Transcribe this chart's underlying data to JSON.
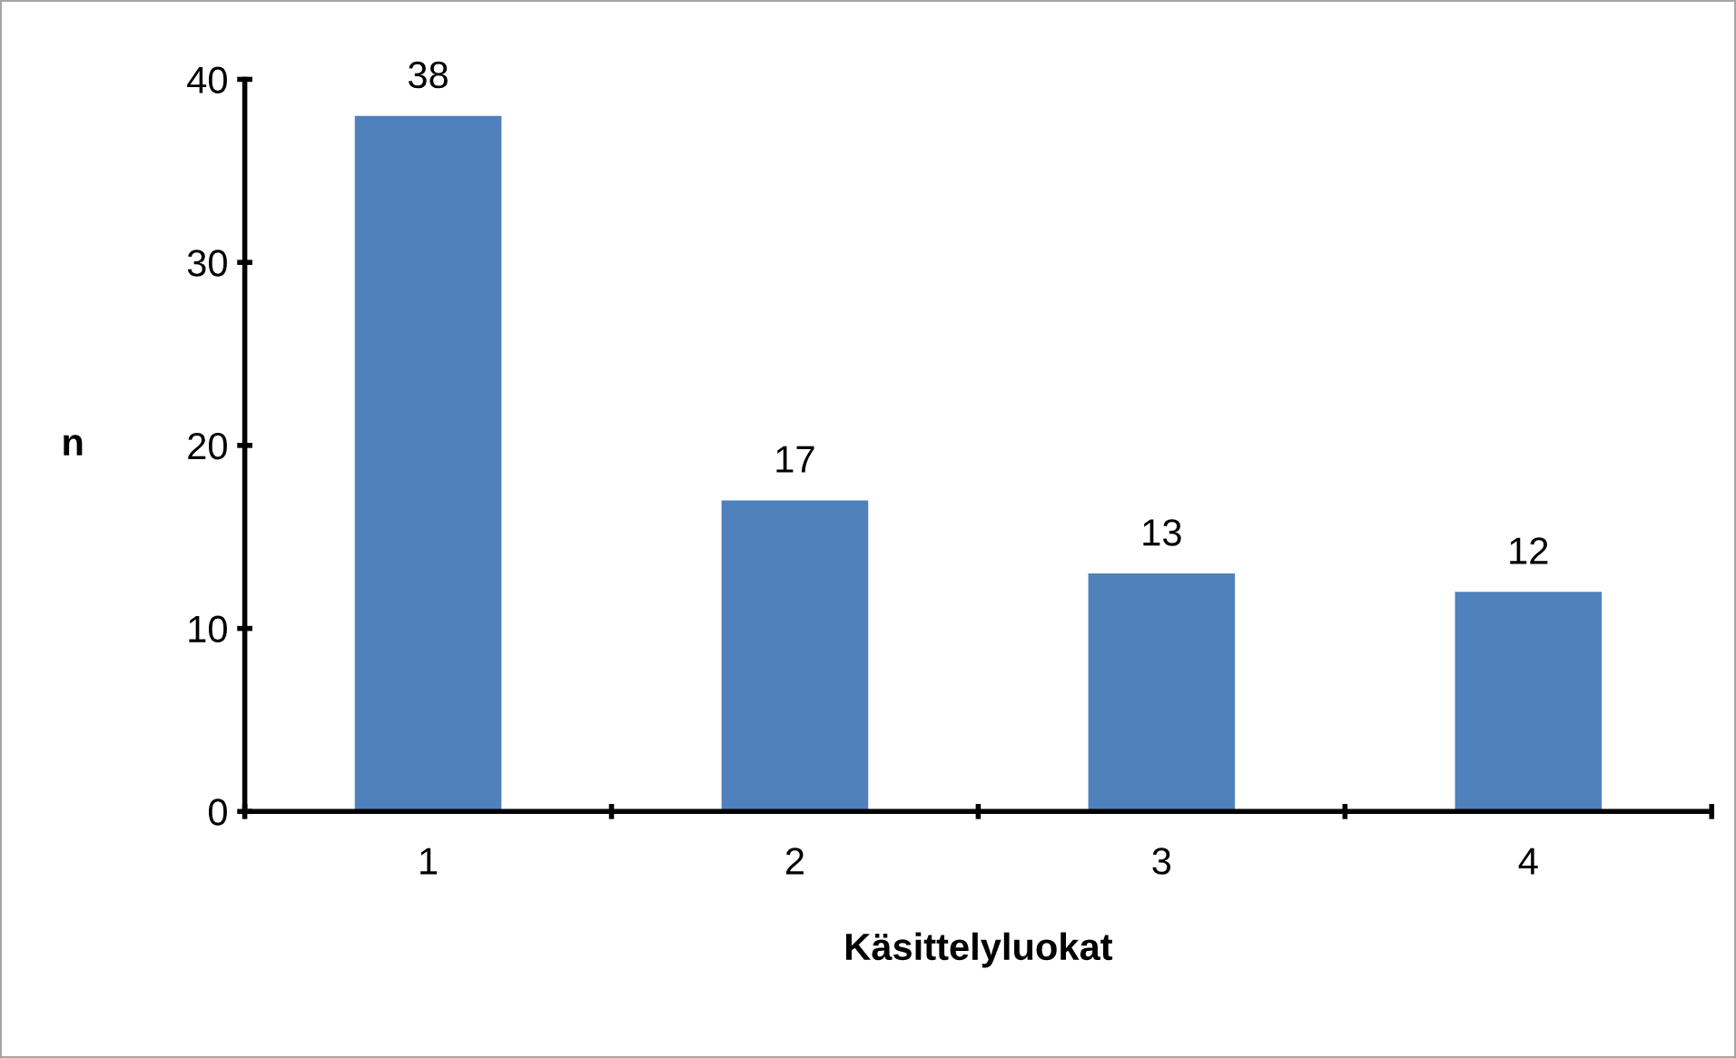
{
  "chart_data": {
    "type": "bar",
    "xlabel": "Käsittelyluokat",
    "ylabel": "n",
    "categories": [
      "1",
      "2",
      "3",
      "4"
    ],
    "values": [
      38,
      17,
      13,
      12
    ],
    "color": "#4f81bd",
    "ylim": [
      0,
      40
    ],
    "yticks": [
      0,
      10,
      20,
      30,
      40
    ],
    "grid": false,
    "data_labels": true,
    "legend": false
  }
}
